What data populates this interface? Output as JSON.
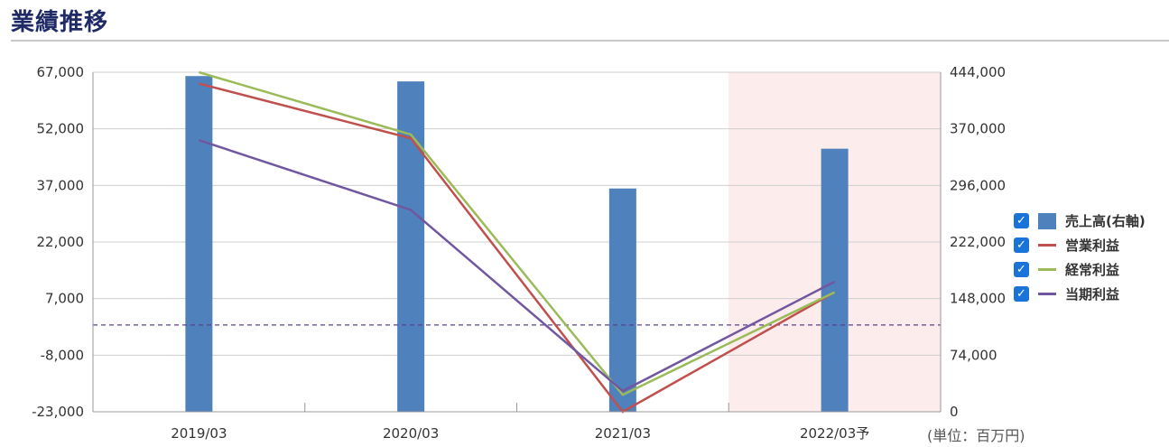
{
  "header": {
    "title": "業績推移"
  },
  "unit_label": "(単位：百万円)",
  "legend": [
    {
      "label": "売上高(右軸)",
      "color": "#4f81bd",
      "kind": "bar",
      "checked": true
    },
    {
      "label": "営業利益",
      "color": "#c0504d",
      "kind": "line",
      "checked": true
    },
    {
      "label": "経常利益",
      "color": "#9bbb59",
      "kind": "line",
      "checked": true
    },
    {
      "label": "当期利益",
      "color": "#7057a0",
      "kind": "line",
      "checked": true
    }
  ],
  "chart_data": {
    "type": "bar",
    "categories": [
      "2019/03",
      "2020/03",
      "2021/03",
      "2022/03予"
    ],
    "forecast_index": 3,
    "left_axis": {
      "min": -23000,
      "max": 67000,
      "ticks": [
        "67,000",
        "52,000",
        "37,000",
        "22,000",
        "7,000",
        "-8,000",
        "-23,000"
      ],
      "tick_values": [
        67000,
        52000,
        37000,
        22000,
        7000,
        -8000,
        -23000
      ]
    },
    "right_axis": {
      "min": 0,
      "max": 444000,
      "ticks": [
        "444,000",
        "370,000",
        "296,000",
        "222,000",
        "148,000",
        "74,000",
        "0"
      ],
      "tick_values": [
        444000,
        370000,
        296000,
        222000,
        148000,
        74000,
        0
      ]
    },
    "zero_line": 0,
    "series": [
      {
        "name": "売上高(右軸)",
        "type": "bar",
        "axis": "right",
        "color": "#4f81bd",
        "values": [
          439000,
          432000,
          292000,
          344000
        ]
      },
      {
        "name": "営業利益",
        "type": "line",
        "axis": "left",
        "color": "#c0504d",
        "values": [
          64000,
          49500,
          -23000,
          8700
        ]
      },
      {
        "name": "経常利益",
        "type": "line",
        "axis": "left",
        "color": "#9bbb59",
        "values": [
          67000,
          50500,
          -18500,
          8700
        ]
      },
      {
        "name": "当期利益",
        "type": "line",
        "axis": "left",
        "color": "#7057a0",
        "values": [
          49000,
          30500,
          -17500,
          11500
        ]
      }
    ],
    "grid": true,
    "legend_position": "right"
  }
}
